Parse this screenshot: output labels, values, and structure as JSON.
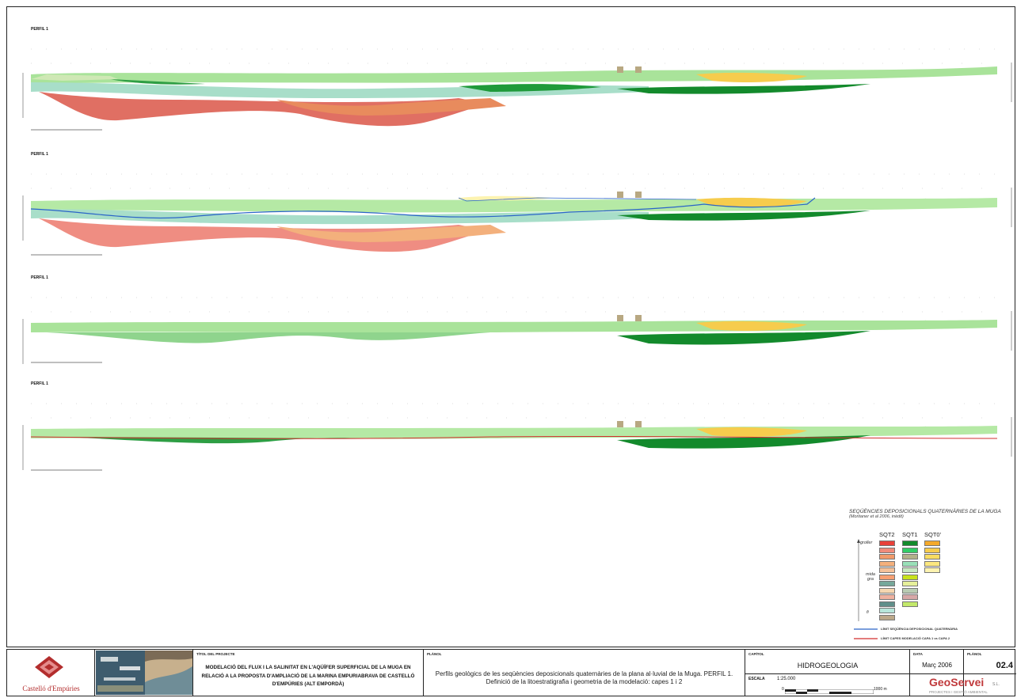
{
  "profiles": [
    {
      "label": "PERFIL 1"
    },
    {
      "label": "PERFIL 1"
    },
    {
      "label": "PERFIL 1"
    },
    {
      "label": "PERFIL 1"
    }
  ],
  "legend": {
    "title": "SEQÜÈNCIES DEPOSICIONALS QUATERNÀRIES DE LA MUGA",
    "subtitle": "(Montaner et al 2006, inèdit)",
    "columns": [
      "SQT2",
      "SQT1",
      "SQT0'"
    ],
    "grain_top": "groller",
    "grain_mid": "mida gra",
    "grain_bottom": "fi",
    "colors": {
      "sqt2": [
        "#e8413a",
        "#f08b7a",
        "#f19a6a",
        "#f3b07c",
        "#f5c199",
        "#f7a073",
        "#76a89a",
        "#f6d7b0",
        "#efb2a0",
        "#5f8f8a",
        "#b7e6da",
        "#bca889"
      ],
      "sqt1": [
        "#138a2c",
        "#33cc66",
        "#b2b08a",
        "#99e0b8",
        "#c7e8c0",
        "#c8e21c",
        "#e6f09a",
        "#b9ccb3",
        "#d7a7a7",
        "#c3e96b"
      ],
      "sqt0": [
        "#f4a92b",
        "#f6cc4d",
        "#f8dc61",
        "#fbe77f",
        "#fdf3b0"
      ]
    },
    "lines": [
      {
        "label": "LÍMIT SEQÜÈNCIA DEPOSICIONAL QUATERNÀRIA",
        "color": "#2a64c8"
      },
      {
        "label": "LÍMIT CAPES MODELACIÓ CAPA 1 vs CAPA 2",
        "color": "#d22f2f"
      }
    ]
  },
  "titleblock": {
    "logo_text": "Castelló d'Empúries",
    "project_heading": "TÍTOL DEL PROJECTE",
    "project_title": "MODELACIÓ DEL FLUX I LA SALINITAT EN L'AQÜÍFER SUPERFICIAL DE LA MUGA EN RELACIÓ A LA PROPOSTA D'AMPLIACIÓ DE LA MARINA EMPURIABRAVA DE CASTELLÓ D'EMPÚRIES (ALT EMPORDÀ)",
    "plano_heading": "PLÀNOL",
    "plano_title": "Perfils geològics de les seqüències deposicionals quaternàries de la plana al·luvial de la Muga. PERFIL 1. Definició de la litoestratigrafia i geometria de la modelació: capes 1 i 2",
    "chapter_heading": "CAPÍTOL",
    "chapter": "HIDROGEOLOGIA",
    "scale_label": "ESCALA",
    "scale_value": "1:25.000",
    "scale_start": "0",
    "scale_end": "1000 m",
    "date_heading": "DATA",
    "date": "Març 2006",
    "sheet_heading": "PLÀNOL",
    "sheet_number": "02.4",
    "company": "GeoServei",
    "company_suffix": "S.L.",
    "company_sub": "PROJECTES I GESTIÓ AMBIENTAL"
  },
  "colors": {
    "border": "#222222",
    "blue_line": "#2a64c8",
    "red_line": "#d22f2f"
  }
}
